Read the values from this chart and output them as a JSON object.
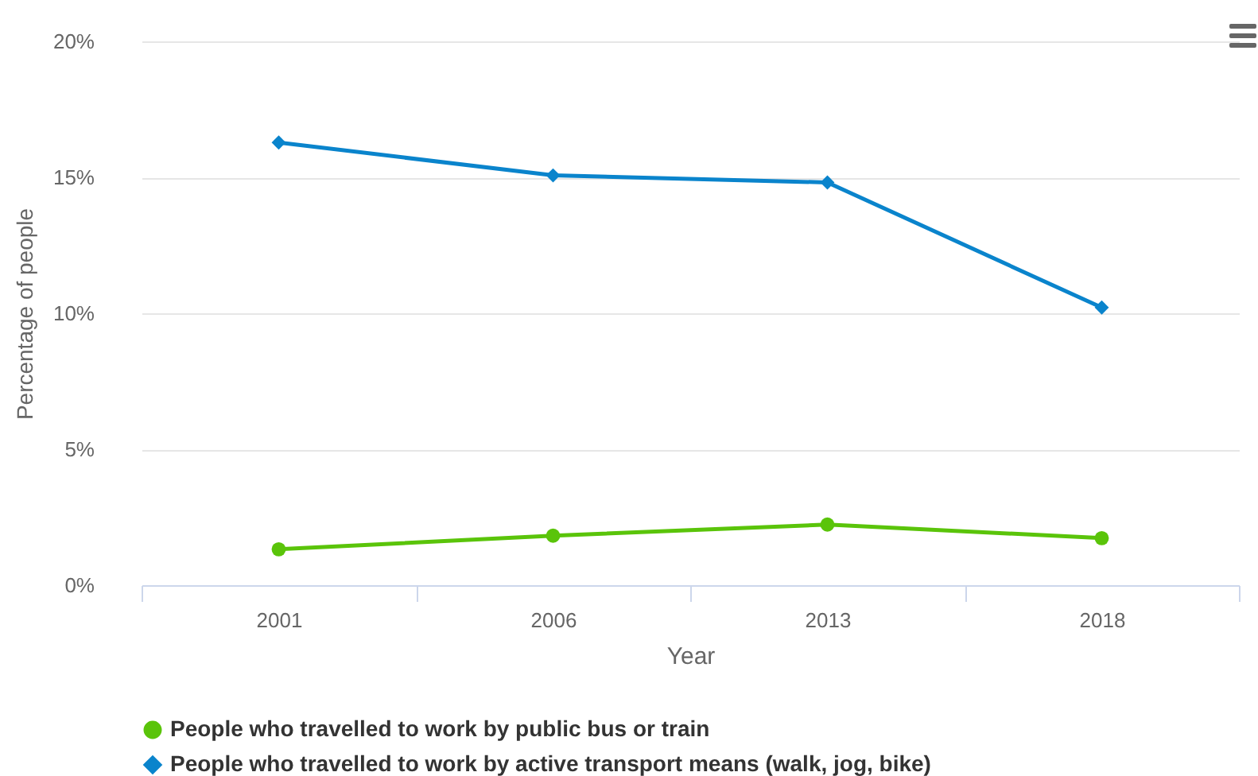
{
  "chart_data": {
    "type": "line",
    "xlabel": "Year",
    "ylabel": "Percentage of people",
    "categories": [
      "2001",
      "2006",
      "2013",
      "2018"
    ],
    "series": [
      {
        "name": "People who travelled to work by public bus or train",
        "color": "#5ac40a",
        "marker": "circle",
        "values": [
          1.32,
          1.82,
          2.23,
          1.73
        ]
      },
      {
        "name": "People who travelled to work by active transport means (walk, jog, bike)",
        "color": "#0a84cc",
        "marker": "diamond",
        "values": [
          16.28,
          15.07,
          14.81,
          10.21
        ]
      }
    ],
    "ylim": [
      0,
      20
    ],
    "yticks": [
      {
        "value": 0,
        "label": "0%"
      },
      {
        "value": 5,
        "label": "5%"
      },
      {
        "value": 10,
        "label": "10%"
      },
      {
        "value": 15,
        "label": "15%"
      },
      {
        "value": 20,
        "label": "20%"
      }
    ],
    "grid": "y",
    "legend": "bottom left"
  }
}
